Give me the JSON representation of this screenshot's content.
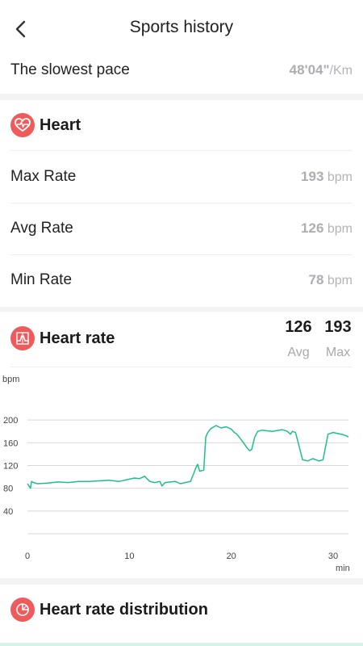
{
  "header": {
    "title": "Sports history"
  },
  "pace": {
    "label": "The slowest pace",
    "value": "48'04\"",
    "unit": "/Km"
  },
  "heart": {
    "title": "Heart",
    "rows": [
      {
        "label": "Max Rate",
        "value": "193",
        "unit": "bpm"
      },
      {
        "label": "Avg Rate",
        "value": "126",
        "unit": "bpm"
      },
      {
        "label": "Min Rate",
        "value": "78",
        "unit": "bpm"
      }
    ]
  },
  "heart_rate": {
    "title": "Heart rate",
    "avg_value": "126",
    "avg_label": "Avg",
    "max_value": "193",
    "max_label": "Max"
  },
  "distribution": {
    "title": "Heart rate distribution"
  },
  "colors": {
    "accent_red": "#ef5a5a",
    "line_green": "#1dbf8e",
    "muted": "#adadb3"
  },
  "chart_data": {
    "type": "line",
    "ylabel": "bpm",
    "xlabel": "min",
    "xlim": [
      0,
      31.5
    ],
    "ylim": [
      0,
      220
    ],
    "x_ticks": [
      0,
      10,
      20,
      30
    ],
    "y_ticks": [
      40,
      80,
      120,
      160,
      200
    ],
    "series": [
      {
        "x": [
          0,
          0.3,
          0.4,
          0.6,
          1,
          2,
          3,
          4,
          5,
          6,
          7,
          8,
          9,
          10,
          10.5,
          11,
          11.5,
          12,
          12.5,
          13,
          13.2,
          13.5,
          14,
          14.5,
          15,
          15.5,
          16,
          16.3,
          16.5,
          16.7,
          16.9,
          17.3,
          17.5,
          17.7,
          18,
          18.5,
          19,
          19.5,
          20,
          20.3,
          20.5,
          21,
          21.2,
          21.5,
          21.8,
          22,
          22.3,
          22.6,
          23,
          24,
          25,
          25.5,
          25.8,
          26,
          26.3,
          26.5,
          27,
          27.5,
          28,
          28.3,
          28.6,
          29,
          29.5,
          30,
          30.5,
          31,
          31.3,
          31.5
        ],
        "y": [
          88,
          80,
          92,
          90,
          88,
          89,
          91,
          90,
          92,
          92,
          93,
          94,
          92,
          96,
          98,
          97,
          101,
          92,
          90,
          92,
          84,
          90,
          91,
          92,
          88,
          90,
          92,
          105,
          115,
          122,
          110,
          112,
          170,
          178,
          185,
          190,
          186,
          188,
          184,
          178,
          176,
          165,
          160,
          152,
          146,
          148,
          170,
          180,
          182,
          180,
          183,
          180,
          175,
          180,
          178,
          165,
          130,
          128,
          132,
          130,
          128,
          130,
          175,
          178,
          176,
          174,
          172,
          170
        ]
      }
    ]
  }
}
